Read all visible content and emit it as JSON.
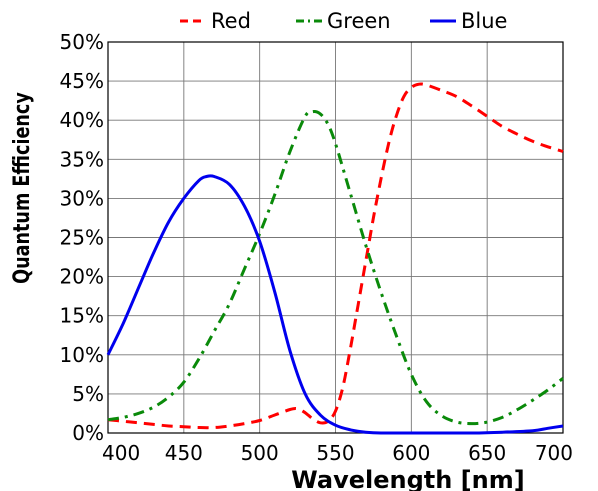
{
  "chart_data": {
    "type": "line",
    "title": "",
    "xlabel": "Wavelength [nm]",
    "ylabel": "Quantum Efficiency",
    "xlim": [
      400,
      700
    ],
    "ylim": [
      0,
      50
    ],
    "x_ticks": [
      400,
      450,
      500,
      550,
      600,
      650,
      700
    ],
    "x_tick_labels": [
      "400",
      "450",
      "500",
      "550",
      "600",
      "650",
      "700"
    ],
    "y_ticks": [
      0,
      5,
      10,
      15,
      20,
      25,
      30,
      35,
      40,
      45,
      50
    ],
    "y_tick_labels": [
      "0%",
      "5%",
      "10%",
      "15%",
      "20%",
      "25%",
      "30%",
      "35%",
      "40%",
      "45%",
      "50%"
    ],
    "grid": true,
    "legend_position": "top",
    "series": [
      {
        "name": "Red",
        "color": "#ff0000",
        "style": "dashed",
        "points": [
          [
            400,
            1.7
          ],
          [
            410,
            1.5
          ],
          [
            420,
            1.3
          ],
          [
            430,
            1.1
          ],
          [
            440,
            0.9
          ],
          [
            450,
            0.8
          ],
          [
            460,
            0.7
          ],
          [
            470,
            0.7
          ],
          [
            480,
            0.9
          ],
          [
            490,
            1.2
          ],
          [
            500,
            1.6
          ],
          [
            510,
            2.3
          ],
          [
            520,
            3.0
          ],
          [
            525,
            3.1
          ],
          [
            530,
            2.6
          ],
          [
            535,
            1.8
          ],
          [
            540,
            1.3
          ],
          [
            545,
            1.5
          ],
          [
            550,
            2.8
          ],
          [
            555,
            6
          ],
          [
            560,
            11
          ],
          [
            565,
            16.5
          ],
          [
            570,
            22
          ],
          [
            575,
            27.5
          ],
          [
            580,
            32.5
          ],
          [
            585,
            37
          ],
          [
            590,
            40.5
          ],
          [
            595,
            43
          ],
          [
            600,
            44.2
          ],
          [
            605,
            44.6
          ],
          [
            610,
            44.5
          ],
          [
            620,
            43.8
          ],
          [
            630,
            43
          ],
          [
            640,
            41.8
          ],
          [
            650,
            40.5
          ],
          [
            660,
            39.2
          ],
          [
            670,
            38.2
          ],
          [
            680,
            37.3
          ],
          [
            690,
            36.6
          ],
          [
            700,
            36
          ]
        ]
      },
      {
        "name": "Green",
        "color": "#0a8a0a",
        "style": "dashdot",
        "points": [
          [
            400,
            1.7
          ],
          [
            410,
            2
          ],
          [
            420,
            2.5
          ],
          [
            430,
            3.3
          ],
          [
            440,
            4.6
          ],
          [
            450,
            6.5
          ],
          [
            460,
            9.5
          ],
          [
            470,
            13
          ],
          [
            480,
            16.5
          ],
          [
            490,
            21
          ],
          [
            500,
            25.5
          ],
          [
            510,
            30.5
          ],
          [
            520,
            36
          ],
          [
            530,
            40.5
          ],
          [
            535,
            41.1
          ],
          [
            540,
            40.8
          ],
          [
            545,
            39.5
          ],
          [
            550,
            37
          ],
          [
            560,
            30.5
          ],
          [
            570,
            24
          ],
          [
            580,
            18
          ],
          [
            590,
            12.5
          ],
          [
            600,
            7.5
          ],
          [
            610,
            4
          ],
          [
            620,
            2.2
          ],
          [
            630,
            1.4
          ],
          [
            640,
            1.2
          ],
          [
            650,
            1.4
          ],
          [
            660,
            2
          ],
          [
            670,
            3
          ],
          [
            680,
            4.2
          ],
          [
            690,
            5.5
          ],
          [
            700,
            7
          ]
        ]
      },
      {
        "name": "Blue",
        "color": "#0000ee",
        "style": "solid",
        "points": [
          [
            400,
            10
          ],
          [
            410,
            14
          ],
          [
            420,
            18.5
          ],
          [
            430,
            23
          ],
          [
            440,
            27
          ],
          [
            450,
            30
          ],
          [
            460,
            32.3
          ],
          [
            465,
            32.8
          ],
          [
            470,
            32.8
          ],
          [
            480,
            31.8
          ],
          [
            490,
            29
          ],
          [
            500,
            24.5
          ],
          [
            510,
            18
          ],
          [
            520,
            10.5
          ],
          [
            530,
            5
          ],
          [
            540,
            2.3
          ],
          [
            550,
            1
          ],
          [
            560,
            0.4
          ],
          [
            570,
            0.1
          ],
          [
            580,
            0
          ],
          [
            600,
            0
          ],
          [
            620,
            0
          ],
          [
            640,
            0
          ],
          [
            660,
            0.1
          ],
          [
            680,
            0.3
          ],
          [
            690,
            0.6
          ],
          [
            700,
            0.9
          ]
        ]
      }
    ]
  }
}
